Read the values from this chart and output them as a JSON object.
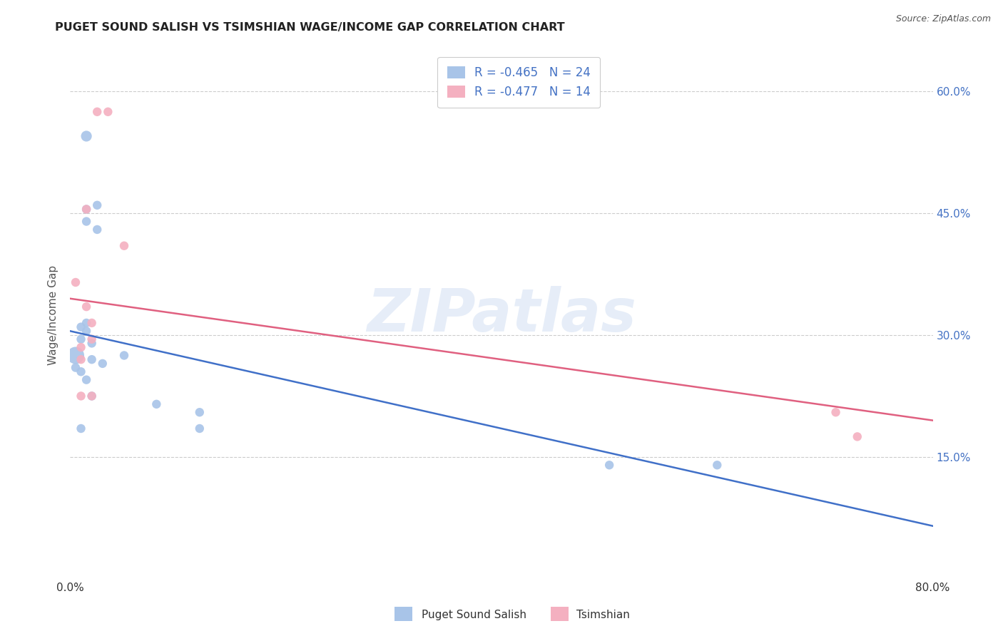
{
  "title": "PUGET SOUND SALISH VS TSIMSHIAN WAGE/INCOME GAP CORRELATION CHART",
  "source": "Source: ZipAtlas.com",
  "ylabel": "Wage/Income Gap",
  "xlim": [
    0.0,
    0.8
  ],
  "ylim": [
    0.0,
    0.65
  ],
  "yticks": [
    0.15,
    0.3,
    0.45,
    0.6
  ],
  "ytick_labels": [
    "15.0%",
    "30.0%",
    "45.0%",
    "60.0%"
  ],
  "xtick_labels": [
    "0.0%",
    "80.0%"
  ],
  "xtick_positions": [
    0.0,
    0.8
  ],
  "blue_R": -0.465,
  "blue_N": 24,
  "pink_R": -0.477,
  "pink_N": 14,
  "blue_color": "#a8c4e8",
  "pink_color": "#f4b0c0",
  "blue_line_color": "#4070c8",
  "pink_line_color": "#e06080",
  "watermark": "ZIPatlas",
  "blue_points_x": [
    0.015,
    0.025,
    0.025,
    0.015,
    0.015,
    0.015,
    0.015,
    0.01,
    0.01,
    0.02,
    0.02,
    0.005,
    0.005,
    0.01,
    0.015,
    0.02,
    0.03,
    0.05,
    0.08,
    0.12,
    0.12,
    0.5,
    0.6,
    0.01
  ],
  "blue_points_y": [
    0.545,
    0.46,
    0.43,
    0.455,
    0.44,
    0.315,
    0.305,
    0.31,
    0.295,
    0.29,
    0.27,
    0.275,
    0.26,
    0.255,
    0.245,
    0.225,
    0.265,
    0.275,
    0.215,
    0.205,
    0.185,
    0.14,
    0.14,
    0.185
  ],
  "pink_points_x": [
    0.025,
    0.035,
    0.05,
    0.015,
    0.015,
    0.02,
    0.02,
    0.01,
    0.01,
    0.71,
    0.73,
    0.01,
    0.02,
    0.005
  ],
  "pink_points_y": [
    0.575,
    0.575,
    0.41,
    0.455,
    0.335,
    0.315,
    0.295,
    0.285,
    0.27,
    0.205,
    0.175,
    0.225,
    0.225,
    0.365
  ],
  "blue_sizes": [
    120,
    80,
    80,
    80,
    80,
    80,
    80,
    80,
    80,
    80,
    80,
    300,
    80,
    80,
    80,
    80,
    80,
    80,
    80,
    80,
    80,
    80,
    80,
    80
  ],
  "pink_sizes": [
    80,
    80,
    80,
    80,
    80,
    80,
    80,
    80,
    80,
    80,
    80,
    80,
    80,
    80
  ],
  "blue_line_x0": 0.0,
  "blue_line_y0": 0.305,
  "blue_line_x1": 0.8,
  "blue_line_y1": 0.065,
  "pink_line_x0": 0.0,
  "pink_line_y0": 0.345,
  "pink_line_x1": 0.8,
  "pink_line_y1": 0.195,
  "legend_label_blue": "Puget Sound Salish",
  "legend_label_pink": "Tsimshian",
  "background_color": "#ffffff",
  "grid_color": "#cccccc",
  "tick_color": "#4472c4",
  "text_color": "#555555"
}
